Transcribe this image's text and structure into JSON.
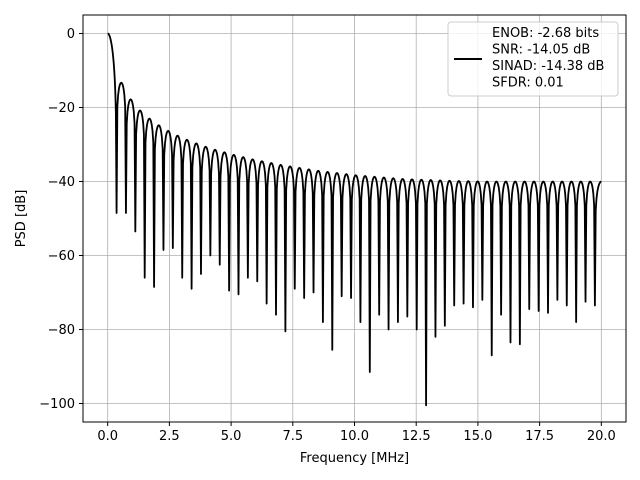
{
  "chart_data": {
    "type": "line",
    "title": "",
    "xlabel": "Frequency [MHz]",
    "ylabel": "PSD [dB]",
    "xlim": [
      -1.0,
      21.0
    ],
    "ylim": [
      -105.0,
      5.0
    ],
    "xticks": [
      0.0,
      2.5,
      5.0,
      7.5,
      10.0,
      12.5,
      15.0,
      17.5,
      20.0
    ],
    "xtick_labels": [
      "0.0",
      "2.5",
      "5.0",
      "7.5",
      "10.0",
      "12.5",
      "15.0",
      "17.5",
      "20.0"
    ],
    "yticks": [
      0,
      -20,
      -40,
      -60,
      -80,
      -100
    ],
    "ytick_labels": [
      "0",
      "−20",
      "−40",
      "−60",
      "−80",
      "−100"
    ],
    "grid": true,
    "legend_position": "upper right",
    "legend_lines": [
      "ENOB: -2.68 bits",
      "SNR: -14.05 dB",
      "SINAD: -14.38 dB",
      "SFDR: 0.01"
    ],
    "series": [
      {
        "color": "#000000",
        "description": "sinc-like PSD: main lobe at 0 dB, sidelobe peaks decaying from about -13 dB to about -40 dB, nulls every ~0.38 MHz",
        "sidelobe_peaks": [
          [
            0.5,
            -13.3
          ],
          [
            0.9,
            -17.8
          ],
          [
            1.27,
            -20.8
          ],
          [
            1.65,
            -23.0
          ],
          [
            2.03,
            -24.8
          ],
          [
            2.41,
            -26.3
          ],
          [
            2.79,
            -27.6
          ],
          [
            3.17,
            -28.7
          ],
          [
            3.55,
            -29.7
          ],
          [
            3.93,
            -30.6
          ],
          [
            4.31,
            -31.4
          ],
          [
            4.69,
            -32.1
          ],
          [
            5.07,
            -32.8
          ],
          [
            5.45,
            -33.4
          ],
          [
            5.83,
            -34.0
          ],
          [
            6.21,
            -34.5
          ],
          [
            6.59,
            -35.0
          ],
          [
            6.97,
            -35.5
          ],
          [
            7.35,
            -35.9
          ],
          [
            7.73,
            -36.3
          ],
          [
            8.11,
            -36.7
          ],
          [
            8.49,
            -37.1
          ],
          [
            8.87,
            -37.4
          ],
          [
            9.25,
            -37.7
          ],
          [
            9.63,
            -38.0
          ],
          [
            10.01,
            -38.3
          ],
          [
            10.39,
            -38.5
          ],
          [
            10.77,
            -38.7
          ],
          [
            11.15,
            -38.9
          ],
          [
            11.53,
            -39.1
          ],
          [
            11.91,
            -39.3
          ],
          [
            12.29,
            -39.4
          ],
          [
            12.67,
            -39.5
          ],
          [
            13.05,
            -39.6
          ],
          [
            13.43,
            -39.7
          ],
          [
            13.81,
            -39.8
          ],
          [
            14.19,
            -39.85
          ],
          [
            14.57,
            -39.9
          ],
          [
            14.95,
            -39.95
          ],
          [
            15.33,
            -40.0
          ],
          [
            15.71,
            -40.0
          ],
          [
            16.09,
            -40.0
          ],
          [
            16.47,
            -40.0
          ],
          [
            16.85,
            -40.0
          ],
          [
            17.23,
            -40.0
          ],
          [
            17.61,
            -40.0
          ],
          [
            17.99,
            -40.0
          ],
          [
            18.37,
            -40.0
          ],
          [
            18.75,
            -40.0
          ],
          [
            19.13,
            -40.0
          ],
          [
            19.51,
            -40.0
          ],
          [
            19.89,
            -40.0
          ]
        ],
        "null_depths": [
          [
            0.36,
            -48.5
          ],
          [
            0.74,
            -48.5
          ],
          [
            1.12,
            -53.5
          ],
          [
            1.5,
            -66.0
          ],
          [
            1.88,
            -68.5
          ],
          [
            2.26,
            -58.5
          ],
          [
            2.64,
            -58.0
          ],
          [
            3.02,
            -66.0
          ],
          [
            3.4,
            -69.0
          ],
          [
            3.78,
            -65.0
          ],
          [
            4.16,
            -60.0
          ],
          [
            4.54,
            -62.5
          ],
          [
            4.92,
            -69.5
          ],
          [
            5.3,
            -70.5
          ],
          [
            5.68,
            -66.0
          ],
          [
            6.06,
            -67.0
          ],
          [
            6.44,
            -73.0
          ],
          [
            6.82,
            -76.0
          ],
          [
            7.2,
            -80.5
          ],
          [
            7.58,
            -69.0
          ],
          [
            7.96,
            -71.5
          ],
          [
            8.34,
            -70.0
          ],
          [
            8.72,
            -78.0
          ],
          [
            9.1,
            -85.5
          ],
          [
            9.48,
            -71.0
          ],
          [
            9.86,
            -71.5
          ],
          [
            10.24,
            -78.0
          ],
          [
            10.62,
            -91.5
          ],
          [
            11.0,
            -76.0
          ],
          [
            11.38,
            -80.0
          ],
          [
            11.76,
            -78.0
          ],
          [
            12.14,
            -76.5
          ],
          [
            12.52,
            -80.0
          ],
          [
            12.9,
            -100.5
          ],
          [
            13.28,
            -82.0
          ],
          [
            13.66,
            -79.0
          ],
          [
            14.04,
            -73.5
          ],
          [
            14.42,
            -73.0
          ],
          [
            14.8,
            -74.0
          ],
          [
            15.18,
            -72.0
          ],
          [
            15.56,
            -87.0
          ],
          [
            15.94,
            -76.0
          ],
          [
            16.32,
            -83.5
          ],
          [
            16.7,
            -84.0
          ],
          [
            17.08,
            -74.5
          ],
          [
            17.46,
            -75.0
          ],
          [
            17.84,
            -75.5
          ],
          [
            18.22,
            -72.0
          ],
          [
            18.6,
            -73.5
          ],
          [
            18.98,
            -78.0
          ],
          [
            19.36,
            -72.5
          ],
          [
            19.74,
            -73.5
          ]
        ],
        "end_value": [
          20.0,
          -40.0
        ]
      }
    ]
  }
}
